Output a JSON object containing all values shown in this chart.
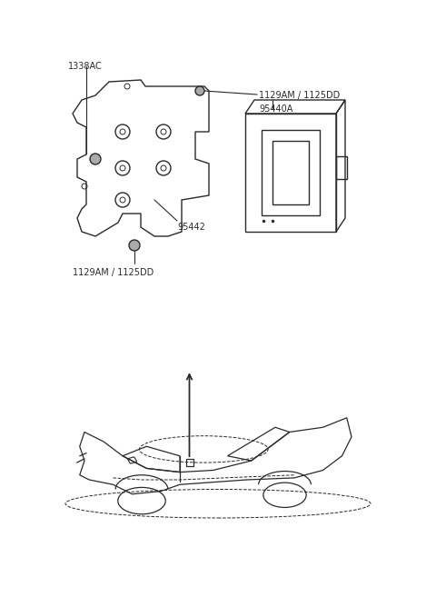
{
  "bg_color": "#ffffff",
  "line_color": "#2a2a2a",
  "text_color": "#2a2a2a",
  "fig_width": 4.8,
  "fig_height": 6.57,
  "dpi": 100,
  "label_1338AC": "1338AC",
  "label_1129AM_1125DD": "1129AM / 1125DD",
  "label_95440A": "95440A",
  "label_95442": "95442",
  "label_1129AM_1125DD_bot": "1129AM / 1125DD",
  "font_size": 7.0
}
